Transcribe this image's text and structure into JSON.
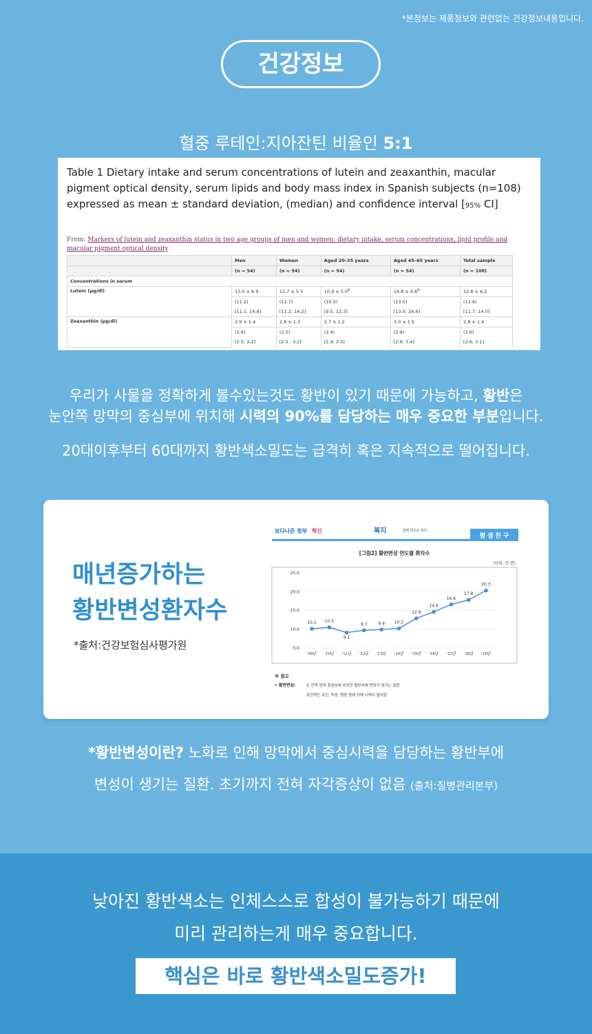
{
  "disclaimer": "*본정보는 제품정보와 관련없는 건강정보내용입니다.",
  "badge": "건강정보",
  "subtitle": {
    "text": "혈중 루테인:지아잔틴 비율인 ",
    "bold": "5:1"
  },
  "table_figure": {
    "title": "Table 1 Dietary intake and serum concentrations of lutein and zeaxanthin, macular pigment optical density, serum lipids and body mass index in Spanish subjects (n=108) expressed as mean ± standard deviation, (median) and confidence interval [",
    "title_small": "95%",
    "title_end": " CI]",
    "from_label": "From: ",
    "from_link": "Markers of lutein and zeaxanthin status in two age groups of men and women: dietary intake, serum concentrations, lipid profile and macular pigment optical density",
    "columns": [
      "Men",
      "Women",
      "Aged 20–35 years",
      "Aged 45–65 years",
      "Total sample"
    ],
    "n": [
      "(n = 54)",
      "(n = 54)",
      "(n = 54)",
      "(n = 54)",
      "(n = 108)"
    ],
    "section": "Concentrations in serum",
    "rows": [
      {
        "label": "Lutein (μg/dl)",
        "cells": [
          {
            "lines": [
              "13.0 ± 6.9",
              "(11.2)",
              "[11.1; 14.8]"
            ]
          },
          {
            "lines": [
              "12.7 ± 5.5",
              "(11.7)",
              "[11.2; 14.2]"
            ]
          },
          {
            "lines": [
              "10.9 ± 5.0",
              "(10.0)",
              "[9.5; 12.3]"
            ],
            "sup": "b"
          },
          {
            "lines": [
              "14.8 ± 6.6",
              "(13.0)",
              "[13.0; 16.6]"
            ],
            "sup": "b"
          },
          {
            "lines": [
              "12.8 ± 6.2",
              "(11.6)",
              "[11.7; 14.0]"
            ]
          }
        ]
      },
      {
        "label": "Zeaxanthin (μg/dl)",
        "cells": [
          {
            "lines": [
              "2.9 ± 1.4",
              "(2.6)",
              "[2.5; 3.2]"
            ]
          },
          {
            "lines": [
              "2.8 ± 1.3",
              "(2.5)",
              "[2.5 : 3.2]"
            ]
          },
          {
            "lines": [
              "2.7 ± 1.2",
              "(2.4)",
              "[2.4; 3.0]"
            ]
          },
          {
            "lines": [
              "3.0 ± 1.5",
              "(2.6)",
              "[2.6; 3.4]"
            ]
          },
          {
            "lines": [
              "2.8 ± 1.4",
              "(2.6)",
              "[2.6; 3.1]"
            ]
          }
        ]
      }
    ]
  },
  "paragraph1": {
    "line1": {
      "text": "우리가 사물을 정확하게 볼수있는것도 황반이 있기 때문에 가능하고, ",
      "bold": "황반",
      "end": "은"
    },
    "line2": {
      "text": "눈안쪽 망막의 중심부에 위치해 ",
      "bold": "시력의 90%를 담당하는 매우 중요한 부분",
      "end": "입니다."
    }
  },
  "paragraph2": "20대이후부터 60대까지 황반색소밀도는 급격히 혹은 지속적으로 떨어집니다.",
  "card": {
    "heading": [
      "매년증가하는",
      "황반변성환자수"
    ],
    "source": "*출처:건강보험심사평가원",
    "chart": {
      "type": "line",
      "logos": [
        "보다나은 정부",
        "혁신",
        "복지",
        "함께 만드는 복지"
      ],
      "tab": "평 생 친 구",
      "title": "[그림2] 황반변성 연도별 환자수",
      "unit": "(단위: 만 명)",
      "categories": [
        "'09년",
        "'10년",
        "'11년",
        "'12년",
        "'13년",
        "'14년",
        "'15년",
        "'16년",
        "'17년",
        "'18년",
        "'19년"
      ],
      "values": [
        10.1,
        10.5,
        9.1,
        9.7,
        9.9,
        10.2,
        12.9,
        14.6,
        16.6,
        17.8,
        20.3
      ],
      "color": "#4a8fd6",
      "ylim": [
        5,
        25
      ],
      "yticks": [
        {
          "value": 5,
          "label": "5.0"
        },
        {
          "value": 10,
          "label": "10.0"
        },
        {
          "value": 15,
          "label": "15.0"
        },
        {
          "value": 20,
          "label": "20.0"
        },
        {
          "value": 25,
          "label": "25.0"
        }
      ],
      "notes": [
        "※ 참고",
        "• 황반변성:",
        "눈 안쪽 망막 중심부에 위치한 황반부에 변화가 생기는 질환",
        "유전적인 요인, 독성, 염증 등에 의해 시력이 떨어짐"
      ]
    }
  },
  "definition": {
    "line1": {
      "bold": "*황반변성이란?",
      "text": " 노화로 인해 망막에서 중심시력을 담당하는 황반부에"
    },
    "line2": {
      "text": "변성이 생기는 질환. 초기까지 전혀 자각증상이 없음 ",
      "small": "(출처:질병관리본부)"
    }
  },
  "bottom": {
    "lines": [
      "낮아진 황반색소는 인체스스로 합성이 불가능하기 때문에",
      "미리 관리하는게 매우 중요합니다."
    ],
    "highlight": "핵심은 바로 황반색소밀도증가!"
  }
}
